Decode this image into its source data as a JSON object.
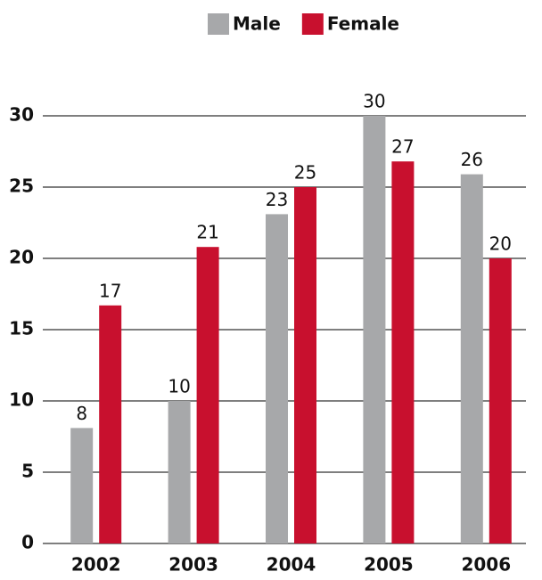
{
  "chart_data": {
    "type": "bar",
    "categories": [
      "2002",
      "2003",
      "2004",
      "2005",
      "2006"
    ],
    "series": [
      {
        "name": "Male",
        "color": "#a7a8aa",
        "values": [
          8.1,
          10,
          23.1,
          30,
          25.9
        ],
        "value_labels": [
          "8",
          "10",
          "23",
          "30",
          "26"
        ]
      },
      {
        "name": "Female",
        "color": "#c8102e",
        "values": [
          16.7,
          20.8,
          25,
          26.8,
          20
        ],
        "value_labels": [
          "17",
          "21",
          "25",
          "27",
          "20"
        ]
      }
    ],
    "ylim": [
      0,
      30
    ],
    "yticks": [
      0,
      5,
      10,
      15,
      20,
      25,
      30
    ],
    "grid": true,
    "legend": "top"
  }
}
